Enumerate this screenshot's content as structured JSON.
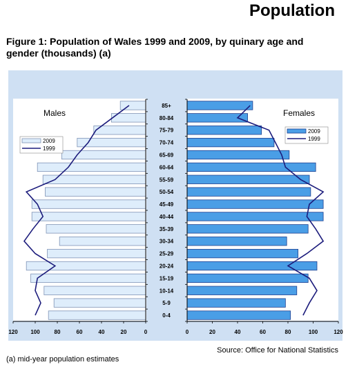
{
  "header": {
    "title": "Population"
  },
  "figure": {
    "title": "Figure 1: Population of Wales 1999 and 2009, by quinary age and gender (thousands) (a)",
    "source": "Source: Office for National Statistics",
    "footnote": "(a) mid-year population estimates"
  },
  "colors": {
    "panel_bg": "#cfe0f3",
    "bar_fill": "#4a9ee6",
    "bar_fill_light": "#deedfb",
    "bar_stroke": "#1f3f8f",
    "line_1999": "#1c1c7c"
  },
  "chart_data": {
    "type": "bar",
    "orientation": "horizontal",
    "categories": [
      "0-4",
      "5-9",
      "10-14",
      "15-19",
      "20-24",
      "25-29",
      "30-34",
      "35-39",
      "40-44",
      "45-49",
      "50-54",
      "55-59",
      "60-64",
      "65-69",
      "70-74",
      "75-79",
      "80-84",
      "85+"
    ],
    "panels": [
      {
        "side": "left",
        "label": "Males",
        "xlim": [
          120,
          0
        ],
        "xticks": [
          120,
          100,
          80,
          60,
          40,
          20,
          0
        ],
        "legend": [
          "2009",
          "1999"
        ],
        "series": [
          {
            "name": "2009",
            "kind": "bar",
            "values": [
              88,
              83,
              92,
              104,
              108,
              89,
              78,
              90,
              103,
              103,
              91,
              93,
              98,
              76,
              62,
              47,
              31,
              23
            ]
          },
          {
            "name": "1999",
            "kind": "line",
            "values": [
              100,
              95,
              100,
              98,
              82,
              100,
              110,
              102,
              93,
              98,
              108,
              82,
              70,
              62,
              52,
              45,
              30,
              15
            ]
          }
        ]
      },
      {
        "side": "right",
        "label": "Females",
        "xlim": [
          0,
          120
        ],
        "xticks": [
          0,
          20,
          40,
          60,
          80,
          100,
          120
        ],
        "legend": [
          "2009",
          "1999"
        ],
        "series": [
          {
            "name": "2009",
            "kind": "bar",
            "values": [
              82,
              78,
              87,
              96,
              103,
              88,
              79,
              96,
              108,
              108,
              98,
              97,
              102,
              81,
              69,
              59,
              48,
              52
            ]
          },
          {
            "name": "1999",
            "kind": "line",
            "values": [
              92,
              97,
              103,
              97,
              80,
              95,
              108,
              102,
              95,
              97,
              108,
              90,
              78,
              75,
              70,
              65,
              40,
              50
            ]
          }
        ]
      }
    ]
  }
}
